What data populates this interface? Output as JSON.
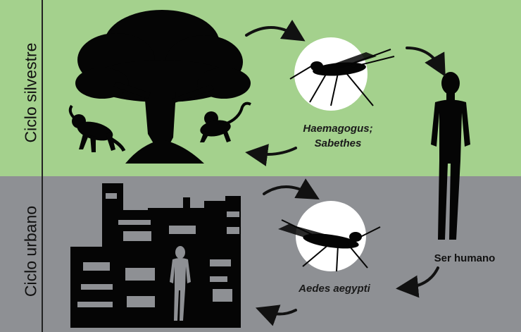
{
  "sylvan_cycle": {
    "label": "Ciclo silvestre",
    "vector_line1": "Haemagogus;",
    "vector_line2": "Sabethes",
    "color": "#a4d18d"
  },
  "urban_cycle": {
    "label": "Ciclo urbano",
    "vector": "Aedes aegypti",
    "color": "#8e9094"
  },
  "host": {
    "label": "Ser humano"
  },
  "icons": [
    "tree-icon",
    "monkey-icon",
    "mosquito-icon",
    "human-icon",
    "city-icon",
    "cycle-arrow-icon"
  ]
}
